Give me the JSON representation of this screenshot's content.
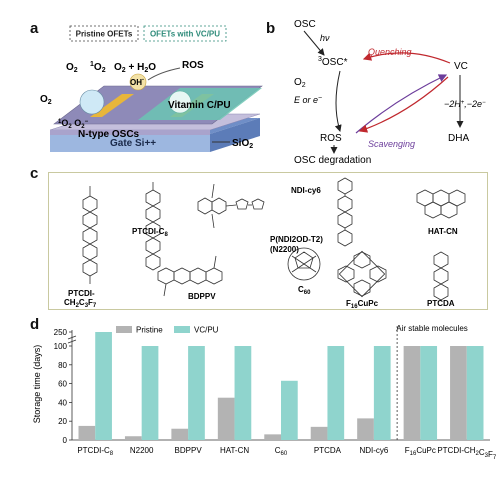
{
  "panels": {
    "a": "a",
    "b": "b",
    "c": "c",
    "d": "d"
  },
  "panel_a": {
    "legend_pristine": "Pristine OFETs",
    "legend_vcpu": "OFETs with VC/PU",
    "o2": "O",
    "o2_sub": "2",
    "singlet_o2": "O",
    "singlet_o2_sup": "1",
    "singlet_o2_sub": "2",
    "o2_h2o": "O",
    "o2_h2o_sub": "2",
    "o2_h2o_tail": " + H",
    "o2_h2o_sub2": "2",
    "o2_h2o_end": "O",
    "ros": "ROS",
    "oh": "OH",
    "oh_sup": "·",
    "o2_left": "O",
    "o2_left_sub": "2",
    "singlet_pair": "O",
    "singlet_pair_sup": "1",
    "singlet_pair_sub": "2",
    "singlet_pair_b": " O",
    "singlet_pair_b_sub": "2",
    "singlet_pair_b_sup": "−",
    "vitamin": "Vitamin C/PU",
    "noscs": "N-type OSCs",
    "sio2": "SiO",
    "sio2_sub": "2",
    "gate": "Gate Si++"
  },
  "panel_b": {
    "osc": "OSC",
    "hv": "hν",
    "triplet_osc": "OSC*",
    "triplet_osc_sup": "3",
    "quenching": "Quenching",
    "vc": "VC",
    "o2": "O",
    "o2_sub": "2",
    "e_or_e": "E or e",
    "e_or_e_sup": "−",
    "minus2": "−2H",
    "minus2_sup": "+",
    "minus2_tail": ",−2e",
    "minus2_tail_sup": "−",
    "ros": "ROS",
    "dha": "DHA",
    "scavenging": "Scavenging",
    "degradation": "OSC degradation"
  },
  "panel_c": {
    "ptcdi_c3f7_a": "PTCDI-",
    "ptcdi_c3f7_b": "CH",
    "ptcdi_c3f7_sub1": "2",
    "ptcdi_c3f7_c": "C",
    "ptcdi_c3f7_sub2": "3",
    "ptcdi_c3f7_d": "F",
    "ptcdi_c3f7_sub3": "7",
    "ptcdi_c8": "PTCDI-C",
    "ptcdi_c8_sub": "8",
    "n2200_a": "P(NDI2OD-T2)",
    "n2200_b": "(N2200)",
    "ndi_cy6": "NDI-cy6",
    "hat_cn": "HAT-CN",
    "bdppv": "BDPPV",
    "c60": "C",
    "c60_sub": "60",
    "f16cupc": "F",
    "f16cupc_sub": "16",
    "f16cupc_tail": "CuPc",
    "ptcda": "PTCDA"
  },
  "chart_data": {
    "type": "bar",
    "ylabel": "Storage time (days)",
    "yticks": [
      "0",
      "20",
      "40",
      "60",
      "80",
      "100",
      "250"
    ],
    "ylim": [
      0,
      250
    ],
    "axis_break": [
      100,
      250
    ],
    "categories": [
      "PTCDI-C8",
      "N2200",
      "BDPPV",
      "HAT-CN",
      "C60",
      "PTCDA",
      "NDI-cy6",
      "F16CuPc",
      "PTCDI-CH2C3F7"
    ],
    "series": [
      {
        "name": "Pristine",
        "color": "#b3b3b3",
        "values": [
          15,
          4,
          12,
          45,
          6,
          14,
          23,
          100,
          100
        ]
      },
      {
        "name": "VC/PU",
        "color": "#8fd4cd",
        "values": [
          250,
          100,
          100,
          100,
          63,
          100,
          100,
          100,
          100
        ]
      }
    ],
    "annotation": "Air stable molecules",
    "legend_position": "top-left"
  }
}
